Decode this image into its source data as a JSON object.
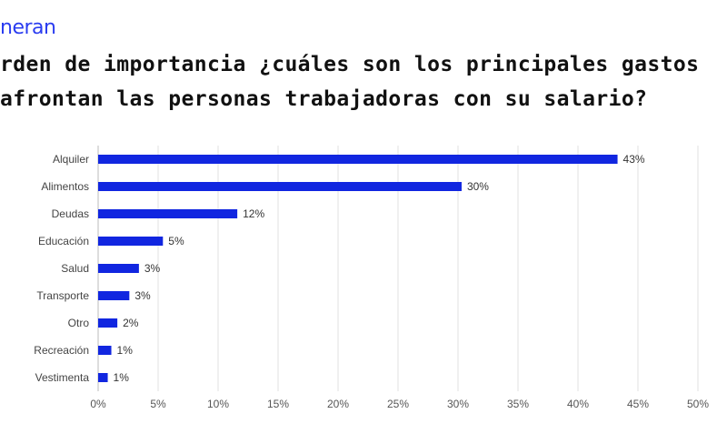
{
  "brand": "neran",
  "title_line1": "rden de importancia ¿cuáles son los principales gastos",
  "title_line2": "afrontan las personas trabajadoras con su salario?",
  "colors": {
    "bar": "#1126e0",
    "grid": "#e0e0e0"
  },
  "chart_data": {
    "type": "bar",
    "orientation": "horizontal",
    "categories": [
      "Alquiler",
      "Alimentos",
      "Deudas",
      "Educación",
      "Salud",
      "Transporte",
      "Otro",
      "Recreación",
      "Vestimenta"
    ],
    "values": [
      43.3,
      30.3,
      11.6,
      5.4,
      3.4,
      2.6,
      1.6,
      1.1,
      0.8
    ],
    "data_labels": [
      "43%",
      "30%",
      "12%",
      "5%",
      "3%",
      "3%",
      "2%",
      "1%",
      "1%"
    ],
    "xlim": [
      0,
      50
    ],
    "x_ticks": [
      "0%",
      "5%",
      "10%",
      "15%",
      "20%",
      "25%",
      "30%",
      "35%",
      "40%",
      "45%",
      "50%"
    ],
    "grid": true,
    "legend": "none"
  }
}
